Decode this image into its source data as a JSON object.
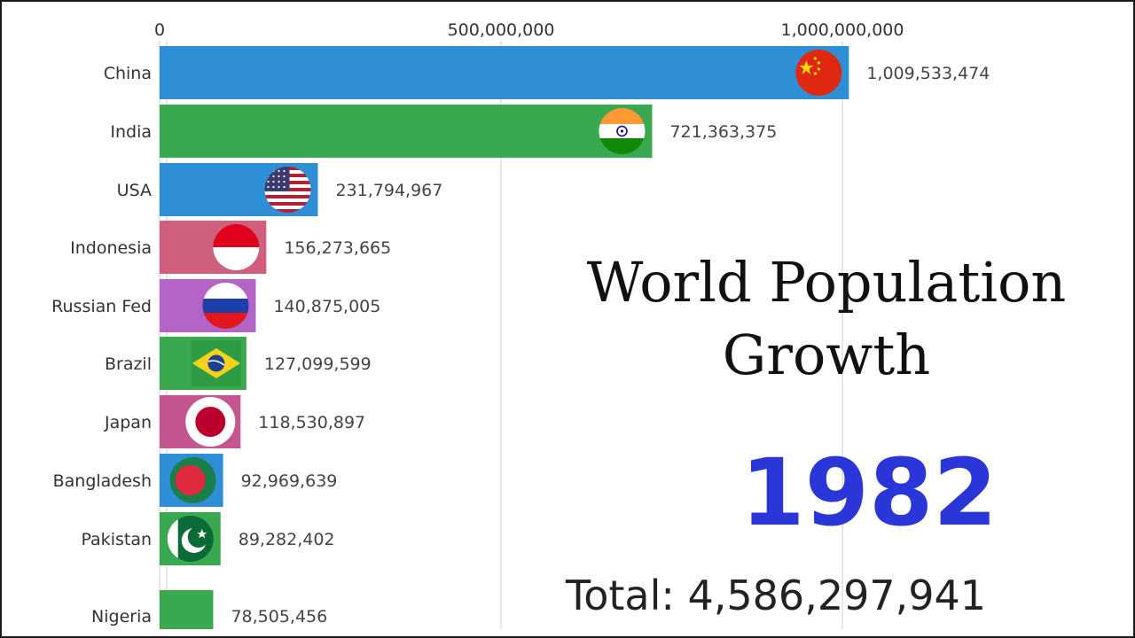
{
  "title": "World Population Growth",
  "title_lines": [
    "World Population",
    "Growth"
  ],
  "year": "1982",
  "total_text": "Total: 4,586,297,941",
  "chart_data": {
    "type": "bar",
    "orientation": "horizontal",
    "title": "World Population Growth",
    "year": "1982",
    "total": 4586297941,
    "xlim": [
      0,
      1000000000
    ],
    "x_ticks": [
      0,
      500000000,
      1000000000
    ],
    "x_tick_labels": [
      "0",
      "500,000,000",
      "1,000,000,000"
    ],
    "grid": true,
    "categories": [
      "China",
      "India",
      "USA",
      "Indonesia",
      "Russian Fed",
      "Brazil",
      "Japan",
      "Bangladesh",
      "Pakistan",
      "Nigeria"
    ],
    "values": [
      1009533474,
      721363375,
      231794967,
      156273665,
      140875005,
      127099599,
      118530897,
      92969639,
      89282402,
      78505456
    ],
    "value_labels": [
      "1,009,533,474",
      "721,363,375",
      "231,794,967",
      "156,273,665",
      "140,875,005",
      "127,099,599",
      "118,530,897",
      "92,969,639",
      "89,282,402",
      "78,505,456"
    ],
    "bar_colors": [
      "#2f8fd6",
      "#3aa84e",
      "#2f8fd6",
      "#cf5f7c",
      "#b364c6",
      "#3aa84e",
      "#c4568f",
      "#2f8fd6",
      "#3aa84e",
      "#3aa84e"
    ],
    "flags": [
      "china-flag",
      "india-flag",
      "usa-flag",
      "indonesia-flag",
      "russia-flag",
      "brazil-flag",
      "japan-flag",
      "bangladesh-flag",
      "pakistan-flag",
      ""
    ]
  },
  "colors": {
    "year": "#2b36d9",
    "grid": "#dddddd",
    "text": "#333333"
  }
}
